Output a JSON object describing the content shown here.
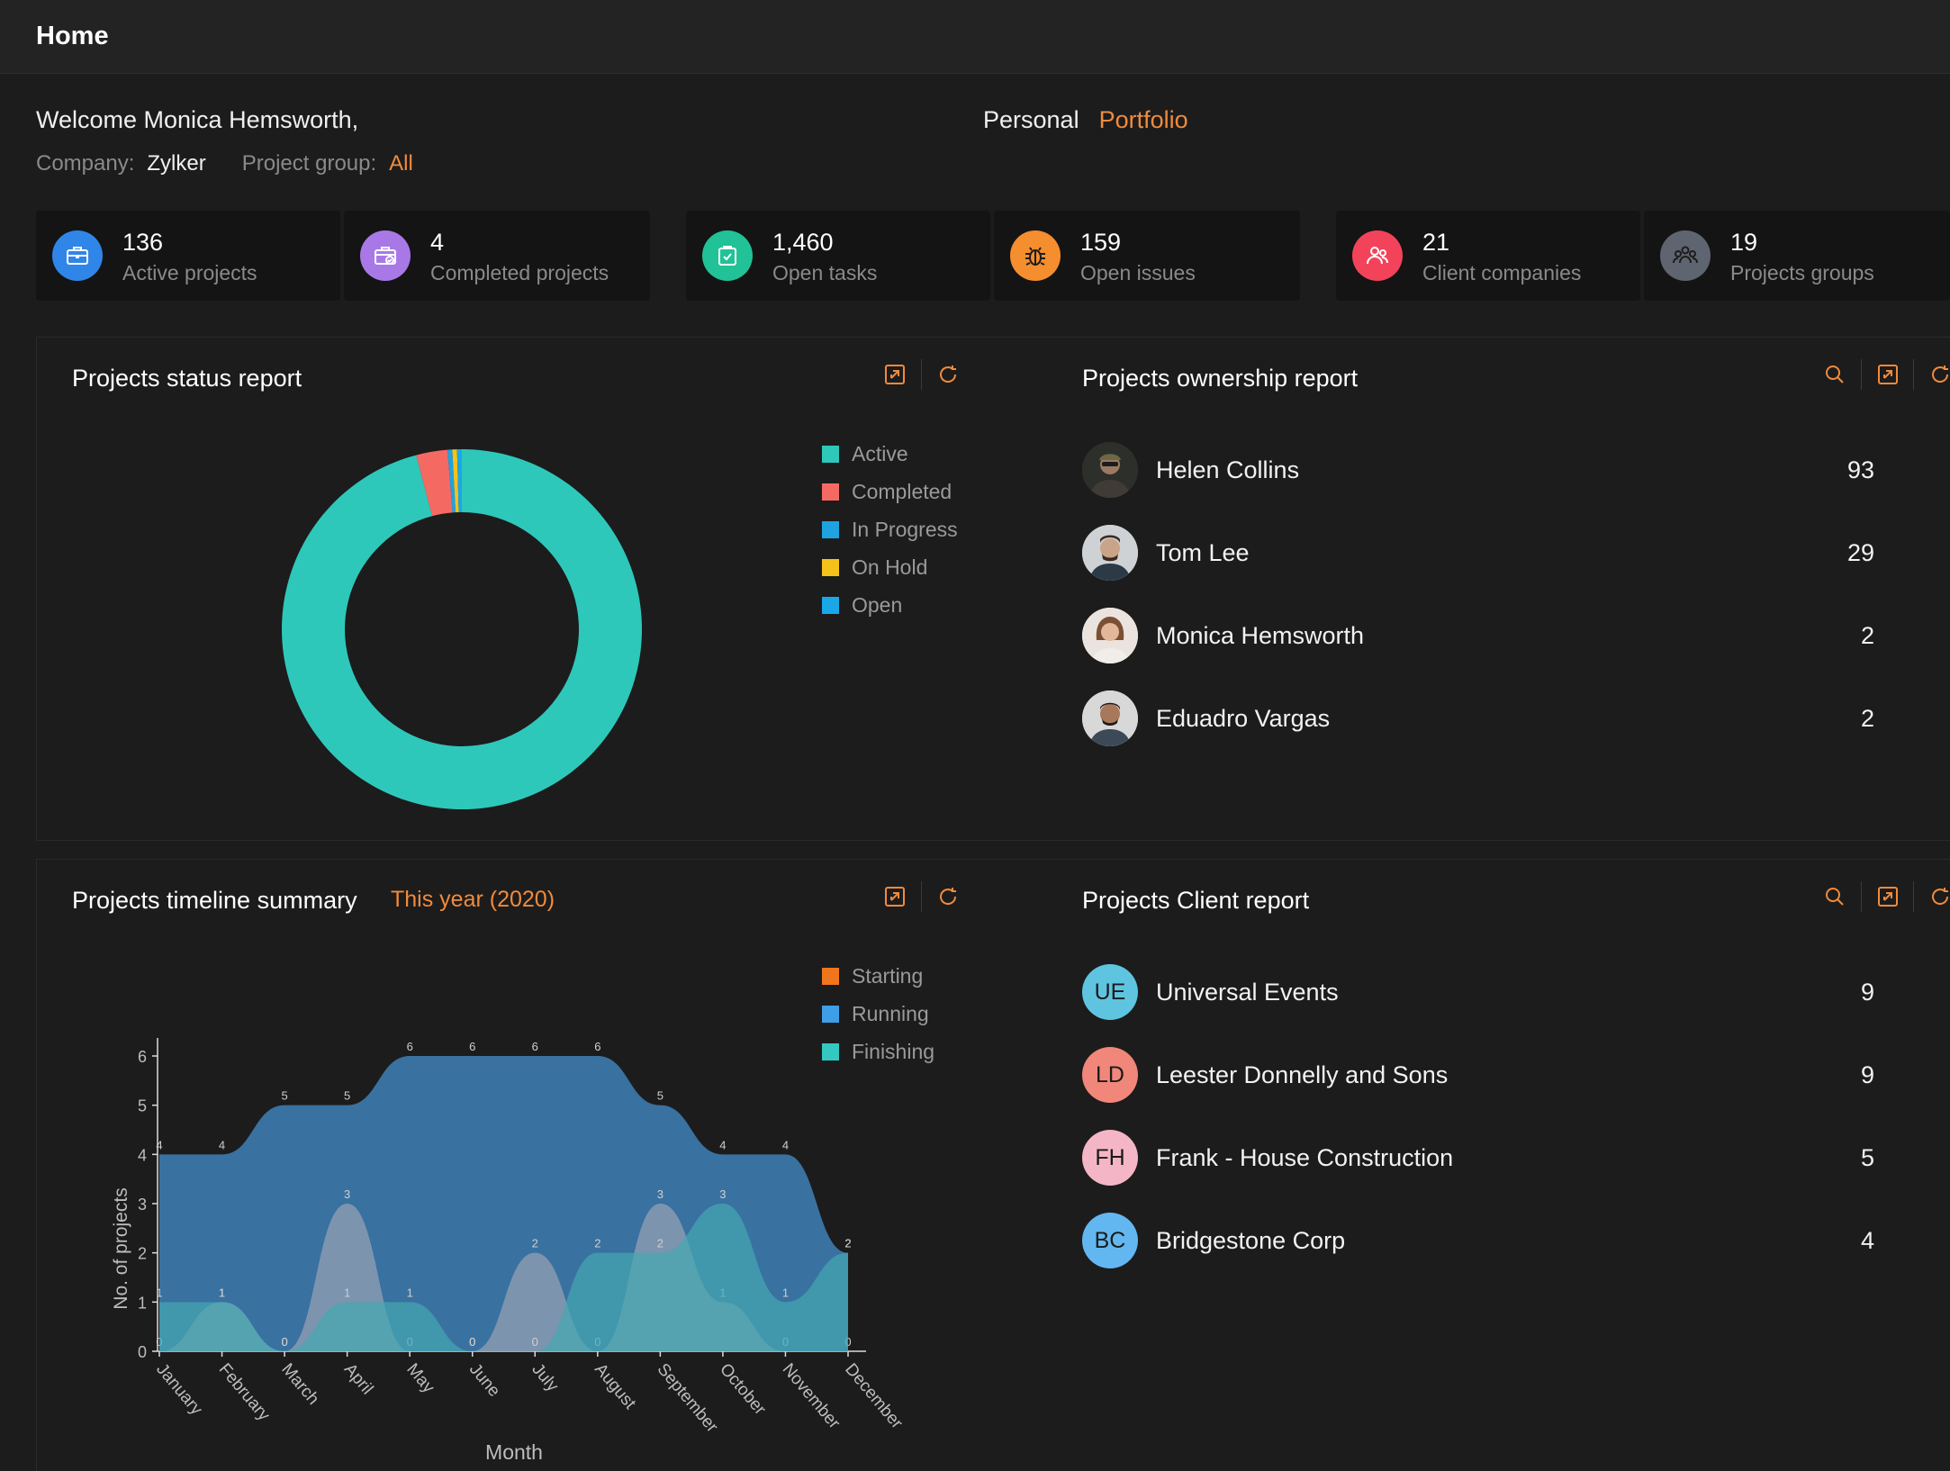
{
  "header": {
    "title": "Home"
  },
  "welcome": "Welcome Monica Hemsworth,",
  "meta": {
    "company_label": "Company:",
    "company": "Zylker",
    "group_label": "Project group:",
    "group": "All"
  },
  "view_tabs": {
    "personal": "Personal",
    "portfolio": "Portfolio"
  },
  "stats": [
    {
      "value": "136",
      "label": "Active projects",
      "color": "#2f86e8",
      "icon": "briefcase-icon"
    },
    {
      "value": "4",
      "label": "Completed projects",
      "color": "#a879e6",
      "icon": "briefcase-check-icon"
    },
    {
      "value": "1,460",
      "label": "Open tasks",
      "color": "#21c297",
      "icon": "clipboard-check-icon"
    },
    {
      "value": "159",
      "label": "Open issues",
      "color": "#f58e2e",
      "icon": "bug-icon"
    },
    {
      "value": "21",
      "label": "Client companies",
      "color": "#f2435a",
      "icon": "users-icon"
    },
    {
      "value": "19",
      "label": "Projects groups",
      "color": "#5e6470",
      "icon": "group-icon"
    }
  ],
  "status_report": {
    "title": "Projects status report",
    "legend": [
      {
        "label": "Active",
        "color": "#2ec8bb"
      },
      {
        "label": "Completed",
        "color": "#f46a63"
      },
      {
        "label": "In Progress",
        "color": "#1fa3e0"
      },
      {
        "label": "On Hold",
        "color": "#f5c21b"
      },
      {
        "label": "Open",
        "color": "#1aa7e8"
      }
    ]
  },
  "ownership_report": {
    "title": "Projects ownership report",
    "rows": [
      {
        "name": "Helen Collins",
        "count": "93"
      },
      {
        "name": "Tom Lee",
        "count": "29"
      },
      {
        "name": "Monica Hemsworth",
        "count": "2"
      },
      {
        "name": "Eduadro Vargas",
        "count": "2"
      }
    ]
  },
  "timeline": {
    "title": "Projects timeline summary",
    "range": "This year (2020)",
    "legend": [
      {
        "label": "Starting",
        "color": "#f0761e"
      },
      {
        "label": "Running",
        "color": "#3f9ee8"
      },
      {
        "label": "Finishing",
        "color": "#34c9c0"
      }
    ]
  },
  "client_report": {
    "title": "Projects Client report",
    "rows": [
      {
        "initials": "UE",
        "name": "Universal Events",
        "count": "9",
        "color": "#5ec4e0"
      },
      {
        "initials": "LD",
        "name": "Leester Donnelly and Sons",
        "count": "9",
        "color": "#f0877a"
      },
      {
        "initials": "FH",
        "name": "Frank - House Construction",
        "count": "5",
        "color": "#f4b6c6"
      },
      {
        "initials": "BC",
        "name": "Bridgestone Corp",
        "count": "4",
        "color": "#63b7f0"
      }
    ]
  },
  "chart_data": [
    {
      "type": "pie",
      "labels": [
        "Active",
        "Completed",
        "In Progress",
        "On Hold",
        "Open"
      ],
      "values": [
        136,
        4,
        0.6,
        0.6,
        0.6
      ],
      "colors": [
        "#2ec8bb",
        "#f46a63",
        "#1fa3e0",
        "#f5c21b",
        "#1aa7e8"
      ],
      "donut": true
    },
    {
      "type": "area",
      "categories": [
        "January",
        "February",
        "March",
        "April",
        "May",
        "June",
        "July",
        "August",
        "September",
        "October",
        "November",
        "December"
      ],
      "series": [
        {
          "name": "Running",
          "values": [
            4,
            4,
            5,
            5,
            6,
            6,
            6,
            6,
            5,
            4,
            4,
            2
          ],
          "color": "#3b76a8"
        },
        {
          "name": "Starting",
          "values": [
            0,
            1,
            0,
            3,
            0,
            0,
            2,
            0,
            3,
            1,
            0,
            0
          ],
          "color": "#9aa4b4"
        },
        {
          "name": "Finishing",
          "values": [
            1,
            1,
            0,
            1,
            1,
            0,
            0,
            2,
            2,
            3,
            1,
            2
          ],
          "color": "#45a8b0"
        }
      ],
      "ylabel": "No. of projects",
      "xlabel": "Month",
      "ylim": [
        0,
        6
      ],
      "yticks": [
        0,
        1,
        2,
        3,
        4,
        5,
        6
      ]
    }
  ]
}
